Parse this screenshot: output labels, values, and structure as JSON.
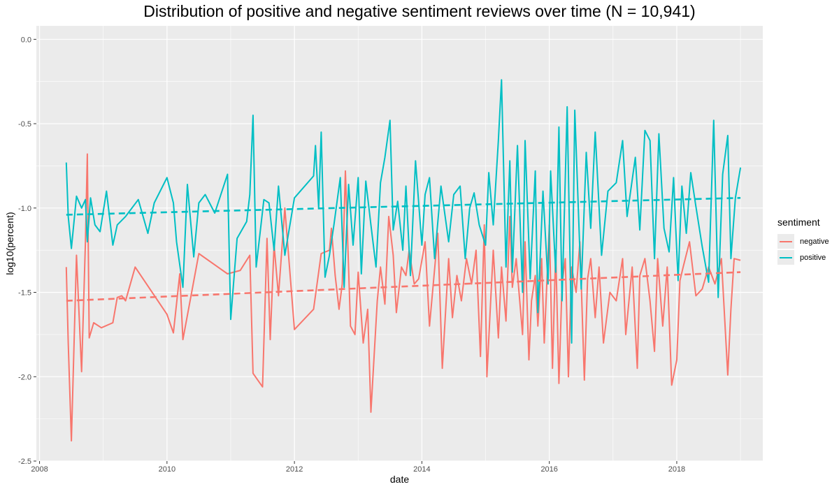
{
  "colors": {
    "negative": "#F8766D",
    "positive": "#00BFC4",
    "panel": "#ebebeb",
    "grid": "#ffffff"
  },
  "chart_data": {
    "type": "line",
    "title": "Distribution of positive and negative sentiment reviews over time (N = 10,941)",
    "xlabel": "date",
    "ylabel": "log10(percent)",
    "xlim": [
      2007.95,
      2019.35
    ],
    "ylim": [
      -2.5,
      0.08
    ],
    "x_ticks": [
      2008,
      2010,
      2012,
      2014,
      2016,
      2018
    ],
    "x_tick_labels": [
      "2008",
      "2010",
      "2012",
      "2014",
      "2016",
      "2018"
    ],
    "y_ticks": [
      -2.5,
      -2.0,
      -1.5,
      -1.0,
      -0.5,
      0.0
    ],
    "y_tick_labels": [
      "-2.5",
      "-2.0",
      "-1.5",
      "-1.0",
      "-0.5",
      "0.0"
    ],
    "grid": true,
    "legend": {
      "title": "sentiment",
      "position": "right",
      "entries": [
        "negative",
        "positive"
      ]
    },
    "trend_lines": [
      {
        "series": "negative",
        "style": "dashed",
        "x": [
          2008.42,
          2019.0
        ],
        "y": [
          -1.55,
          -1.38
        ]
      },
      {
        "series": "positive",
        "style": "dashed",
        "x": [
          2008.42,
          2019.0
        ],
        "y": [
          -1.04,
          -0.94
        ]
      }
    ],
    "series": [
      {
        "name": "negative",
        "x": [
          2008.42,
          2008.45,
          2008.5,
          2008.58,
          2008.66,
          2008.72,
          2008.75,
          2008.78,
          2008.85,
          2008.97,
          2009.15,
          2009.22,
          2009.29,
          2009.35,
          2009.5,
          2010.0,
          2010.1,
          2010.2,
          2010.25,
          2010.5,
          2010.95,
          2011.15,
          2011.3,
          2011.35,
          2011.5,
          2011.57,
          2011.62,
          2011.68,
          2011.75,
          2011.85,
          2012.0,
          2012.3,
          2012.42,
          2012.55,
          2012.58,
          2012.64,
          2012.7,
          2012.75,
          2012.8,
          2012.88,
          2012.95,
          2013.0,
          2013.08,
          2013.15,
          2013.2,
          2013.3,
          2013.35,
          2013.42,
          2013.48,
          2013.55,
          2013.6,
          2013.68,
          2013.75,
          2013.8,
          2013.88,
          2013.95,
          2014.05,
          2014.12,
          2014.25,
          2014.32,
          2014.42,
          2014.48,
          2014.55,
          2014.62,
          2014.7,
          2014.78,
          2014.85,
          2014.92,
          2014.98,
          2015.02,
          2015.08,
          2015.12,
          2015.2,
          2015.25,
          2015.32,
          2015.38,
          2015.42,
          2015.48,
          2015.58,
          2015.62,
          2015.68,
          2015.72,
          2015.78,
          2015.82,
          2015.88,
          2015.92,
          2016.0,
          2016.05,
          2016.1,
          2016.15,
          2016.2,
          2016.25,
          2016.3,
          2016.35,
          2016.42,
          2016.48,
          2016.55,
          2016.6,
          2016.65,
          2016.72,
          2016.78,
          2016.85,
          2016.95,
          2017.05,
          2017.15,
          2017.2,
          2017.3,
          2017.38,
          2017.42,
          2017.5,
          2017.58,
          2017.65,
          2017.7,
          2017.78,
          2017.85,
          2017.92,
          2018.0,
          2018.05,
          2018.1,
          2018.2,
          2018.3,
          2018.4,
          2018.5,
          2018.6,
          2018.7,
          2018.8,
          2018.85,
          2018.9,
          2019.0
        ],
        "y": [
          -1.35,
          -1.8,
          -2.38,
          -1.28,
          -1.97,
          -1.2,
          -0.68,
          -1.77,
          -1.68,
          -1.71,
          -1.68,
          -1.53,
          -1.52,
          -1.55,
          -1.35,
          -1.63,
          -1.74,
          -1.39,
          -1.78,
          -1.27,
          -1.39,
          -1.37,
          -1.28,
          -1.98,
          -2.06,
          -1.18,
          -1.78,
          -1.22,
          -1.52,
          -1.0,
          -1.72,
          -1.6,
          -1.27,
          -1.25,
          -1.12,
          -1.4,
          -1.6,
          -1.45,
          -0.78,
          -1.7,
          -1.75,
          -1.38,
          -1.8,
          -1.6,
          -2.21,
          -1.55,
          -1.35,
          -1.57,
          -1.05,
          -1.28,
          -1.62,
          -1.35,
          -1.4,
          -1.25,
          -1.45,
          -1.42,
          -1.2,
          -1.7,
          -1.15,
          -1.95,
          -1.3,
          -1.65,
          -1.4,
          -1.55,
          -1.3,
          -1.45,
          -1.25,
          -1.88,
          -1.1,
          -2.0,
          -1.55,
          -1.25,
          -1.77,
          -1.35,
          -1.67,
          -1.05,
          -1.47,
          -1.3,
          -1.75,
          -1.2,
          -1.9,
          -1.55,
          -1.4,
          -1.7,
          -1.3,
          -1.8,
          -1.1,
          -1.95,
          -1.25,
          -2.04,
          -1.45,
          -1.3,
          -2.0,
          -1.35,
          -1.5,
          -1.2,
          -2.02,
          -1.42,
          -1.3,
          -1.65,
          -1.35,
          -1.8,
          -1.5,
          -1.55,
          -1.3,
          -1.75,
          -1.35,
          -1.95,
          -1.4,
          -1.3,
          -1.55,
          -1.85,
          -1.3,
          -1.7,
          -1.35,
          -2.05,
          -1.9,
          -1.43,
          -1.35,
          -1.2,
          -1.52,
          -1.48,
          -1.35,
          -1.45,
          -1.3,
          -1.99,
          -1.6,
          -1.3,
          -1.31
        ]
      },
      {
        "name": "positive",
        "x": [
          2008.42,
          2008.45,
          2008.5,
          2008.58,
          2008.66,
          2008.72,
          2008.75,
          2008.8,
          2008.87,
          2008.95,
          2009.05,
          2009.15,
          2009.22,
          2009.35,
          2009.55,
          2009.7,
          2009.8,
          2010.0,
          2010.1,
          2010.15,
          2010.25,
          2010.32,
          2010.42,
          2010.5,
          2010.6,
          2010.75,
          2010.95,
          2011.0,
          2011.1,
          2011.25,
          2011.3,
          2011.35,
          2011.4,
          2011.52,
          2011.6,
          2011.68,
          2011.75,
          2011.85,
          2012.0,
          2012.3,
          2012.33,
          2012.38,
          2012.42,
          2012.48,
          2012.55,
          2012.62,
          2012.72,
          2012.78,
          2012.85,
          2012.92,
          2013.0,
          2013.05,
          2013.12,
          2013.2,
          2013.28,
          2013.35,
          2013.42,
          2013.5,
          2013.55,
          2013.62,
          2013.7,
          2013.75,
          2013.82,
          2013.9,
          2014.0,
          2014.05,
          2014.12,
          2014.2,
          2014.3,
          2014.42,
          2014.5,
          2014.6,
          2014.68,
          2014.75,
          2014.82,
          2014.9,
          2015.0,
          2015.05,
          2015.12,
          2015.2,
          2015.25,
          2015.32,
          2015.38,
          2015.42,
          2015.5,
          2015.58,
          2015.62,
          2015.7,
          2015.78,
          2015.82,
          2015.9,
          2015.98,
          2016.02,
          2016.1,
          2016.15,
          2016.2,
          2016.28,
          2016.35,
          2016.4,
          2016.5,
          2016.58,
          2016.65,
          2016.72,
          2016.82,
          2016.92,
          2017.05,
          2017.15,
          2017.22,
          2017.35,
          2017.42,
          2017.5,
          2017.58,
          2017.65,
          2017.72,
          2017.8,
          2017.88,
          2017.95,
          2018.02,
          2018.08,
          2018.15,
          2018.22,
          2018.3,
          2018.4,
          2018.5,
          2018.58,
          2018.65,
          2018.72,
          2018.8,
          2018.85,
          2018.92,
          2019.0
        ],
        "y": [
          -0.73,
          -1.05,
          -1.24,
          -0.93,
          -1.0,
          -0.95,
          -1.2,
          -0.94,
          -1.1,
          -1.14,
          -0.9,
          -1.22,
          -1.1,
          -1.05,
          -0.95,
          -1.15,
          -0.97,
          -0.82,
          -0.97,
          -1.2,
          -1.47,
          -0.86,
          -1.29,
          -0.97,
          -0.92,
          -1.03,
          -0.8,
          -1.66,
          -1.18,
          -1.08,
          -0.92,
          -0.45,
          -1.35,
          -0.95,
          -0.97,
          -1.25,
          -0.87,
          -1.28,
          -0.94,
          -0.81,
          -0.63,
          -1.0,
          -0.55,
          -1.41,
          -1.28,
          -1.1,
          -0.82,
          -1.47,
          -0.86,
          -1.22,
          -0.82,
          -1.39,
          -0.84,
          -1.1,
          -1.35,
          -0.85,
          -0.7,
          -0.48,
          -1.13,
          -0.96,
          -1.25,
          -0.87,
          -1.4,
          -0.72,
          -1.22,
          -0.92,
          -0.82,
          -1.3,
          -0.87,
          -1.2,
          -0.92,
          -0.87,
          -1.3,
          -1.0,
          -0.91,
          -1.1,
          -1.22,
          -0.79,
          -1.1,
          -0.6,
          -0.24,
          -1.35,
          -0.72,
          -1.38,
          -0.63,
          -1.5,
          -0.6,
          -1.42,
          -0.78,
          -1.62,
          -0.9,
          -1.45,
          -0.78,
          -1.38,
          -0.52,
          -1.55,
          -0.4,
          -1.8,
          -0.42,
          -1.48,
          -0.67,
          -1.12,
          -0.55,
          -1.28,
          -0.9,
          -0.85,
          -0.6,
          -1.05,
          -0.7,
          -1.13,
          -0.54,
          -0.6,
          -1.3,
          -0.56,
          -1.12,
          -1.26,
          -0.82,
          -1.43,
          -0.87,
          -1.15,
          -0.79,
          -0.99,
          -1.23,
          -1.44,
          -0.48,
          -1.53,
          -0.8,
          -0.57,
          -1.3,
          -0.94,
          -0.76
        ]
      }
    ]
  }
}
